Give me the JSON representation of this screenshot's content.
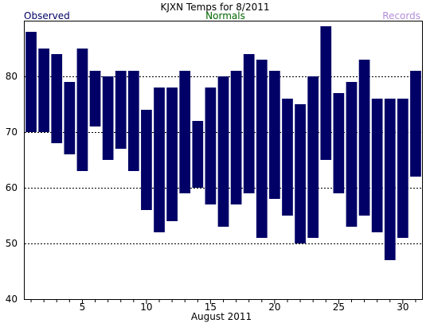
{
  "chart_data": {
    "type": "bar",
    "title": "KJXN Temps for 8/2011",
    "xlabel": "August 2011",
    "ylabel": "",
    "legend": [
      {
        "label": "Observed",
        "color": "#000066"
      },
      {
        "label": "Normals",
        "color": "#006600"
      },
      {
        "label": "Records",
        "color": "#b38cd9"
      }
    ],
    "ylim": [
      40,
      90
    ],
    "y_ticks": [
      40,
      50,
      60,
      70,
      80
    ],
    "x_tick_labels": [
      5,
      10,
      15,
      20,
      25,
      30
    ],
    "gridlines_at": [
      50,
      60,
      70,
      80
    ],
    "bar_color": "#000066",
    "days": [
      1,
      2,
      3,
      4,
      5,
      6,
      7,
      8,
      9,
      10,
      11,
      12,
      13,
      14,
      15,
      16,
      17,
      18,
      19,
      20,
      21,
      22,
      23,
      24,
      25,
      26,
      27,
      28,
      29,
      30,
      31
    ],
    "series": [
      {
        "name": "Observed",
        "high": [
          88,
          85,
          84,
          79,
          85,
          81,
          80,
          81,
          81,
          74,
          78,
          78,
          81,
          72,
          78,
          80,
          81,
          84,
          83,
          81,
          76,
          75,
          80,
          89,
          77,
          79,
          83,
          76,
          76,
          76,
          81
        ],
        "low": [
          70,
          70,
          68,
          66,
          63,
          71,
          65,
          67,
          63,
          56,
          52,
          54,
          59,
          60,
          57,
          53,
          57,
          59,
          51,
          58,
          55,
          50,
          51,
          65,
          59,
          53,
          55,
          52,
          47,
          51,
          62
        ]
      }
    ]
  }
}
